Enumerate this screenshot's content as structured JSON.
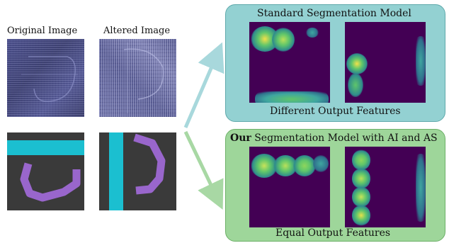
{
  "left": {
    "original_label": "Original Image",
    "altered_label": "Altered Image"
  },
  "panels": {
    "standard": {
      "title": "Standard Segmentation Model",
      "caption": "Different Output Features",
      "color": "#93d1d2"
    },
    "ours": {
      "title_bold": "Our",
      "title_rest": " Segmentation Model with AI and AS",
      "caption": "Equal Output Features",
      "color": "#9ed69a"
    }
  },
  "arrows": {
    "top_color": "#a8d8dc",
    "bottom_color": "#a8d8a4"
  },
  "mask_colors": {
    "background": "#3a3a3a",
    "bar": "#1bbfd0",
    "curve": "#9966cc"
  },
  "heatmap_colors": {
    "background": "#430054",
    "low": "#2f8c8c",
    "mid": "#5fc56b",
    "high": "#f2e14a"
  }
}
